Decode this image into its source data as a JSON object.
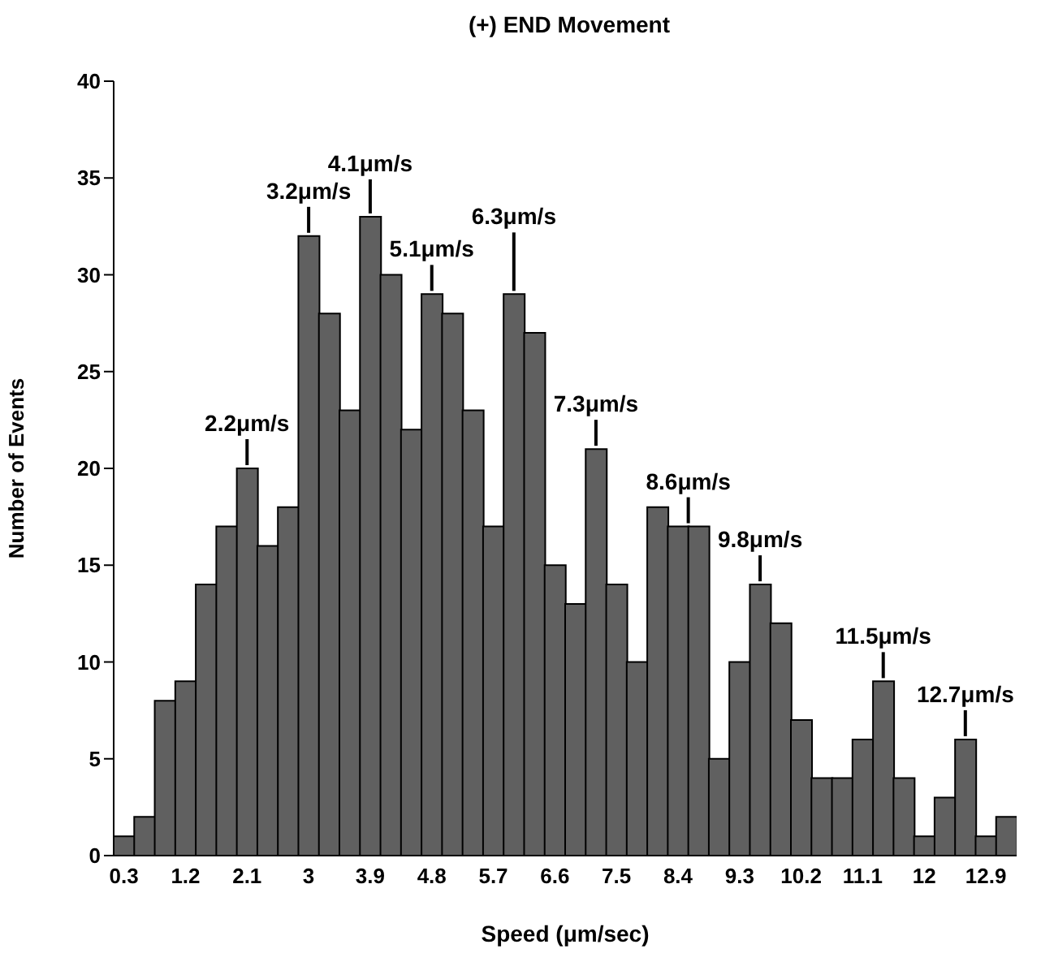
{
  "chart_data": {
    "type": "histogram",
    "title": "(+) END Movement",
    "xlabel": "Speed (μm/sec)",
    "ylabel": "Number of Events",
    "bins": [
      0.15,
      0.45,
      0.75,
      1.05,
      1.35,
      1.65,
      1.95,
      2.25,
      2.55,
      2.85,
      3.15,
      3.45,
      3.75,
      4.05,
      4.35,
      4.65,
      4.95,
      5.25,
      5.55,
      5.85,
      6.15,
      6.45,
      6.75,
      7.05,
      7.35,
      7.65,
      7.95,
      8.25,
      8.55,
      8.85,
      9.15,
      9.45,
      9.75,
      10.05,
      10.35,
      10.65,
      10.95,
      11.25,
      11.55,
      11.85,
      12.15,
      12.45,
      12.75,
      13.05,
      13.35
    ],
    "values": [
      1,
      2,
      8,
      9,
      14,
      17,
      20,
      16,
      18,
      32,
      28,
      23,
      33,
      30,
      22,
      29,
      28,
      23,
      17,
      29,
      27,
      15,
      13,
      21,
      14,
      10,
      18,
      17,
      17,
      5,
      10,
      14,
      12,
      7,
      4,
      4,
      6,
      9,
      4,
      1,
      3,
      6,
      1,
      2
    ],
    "color": "#606060",
    "xlim": [
      0.15,
      13.35
    ],
    "xticks": [
      0.3,
      1.2,
      2.1,
      3,
      3.9,
      4.8,
      5.7,
      6.6,
      7.5,
      8.4,
      9.3,
      10.2,
      11.1,
      12,
      12.9
    ],
    "ylim": [
      0,
      40
    ],
    "yticks": [
      0,
      5,
      10,
      15,
      20,
      25,
      30,
      35,
      40
    ],
    "grid": false,
    "legend": false,
    "annotations": [
      {
        "text": "2.2μm/s",
        "x": 2.1,
        "y": 20
      },
      {
        "text": "3.2μm/s",
        "x": 3.0,
        "y": 32
      },
      {
        "text": "4.1μm/s",
        "x": 3.9,
        "y": 33
      },
      {
        "text": "5.1μm/s",
        "x": 4.8,
        "y": 29
      },
      {
        "text": "6.3μm/s",
        "x": 6.0,
        "y": 29
      },
      {
        "text": "7.3μm/s",
        "x": 7.2,
        "y": 21
      },
      {
        "text": "8.6μm/s",
        "x": 8.55,
        "y": 17
      },
      {
        "text": "9.8μm/s",
        "x": 9.6,
        "y": 14
      },
      {
        "text": "11.5μm/s",
        "x": 11.4,
        "y": 9
      },
      {
        "text": "12.7μm/s",
        "x": 12.6,
        "y": 6
      }
    ]
  }
}
